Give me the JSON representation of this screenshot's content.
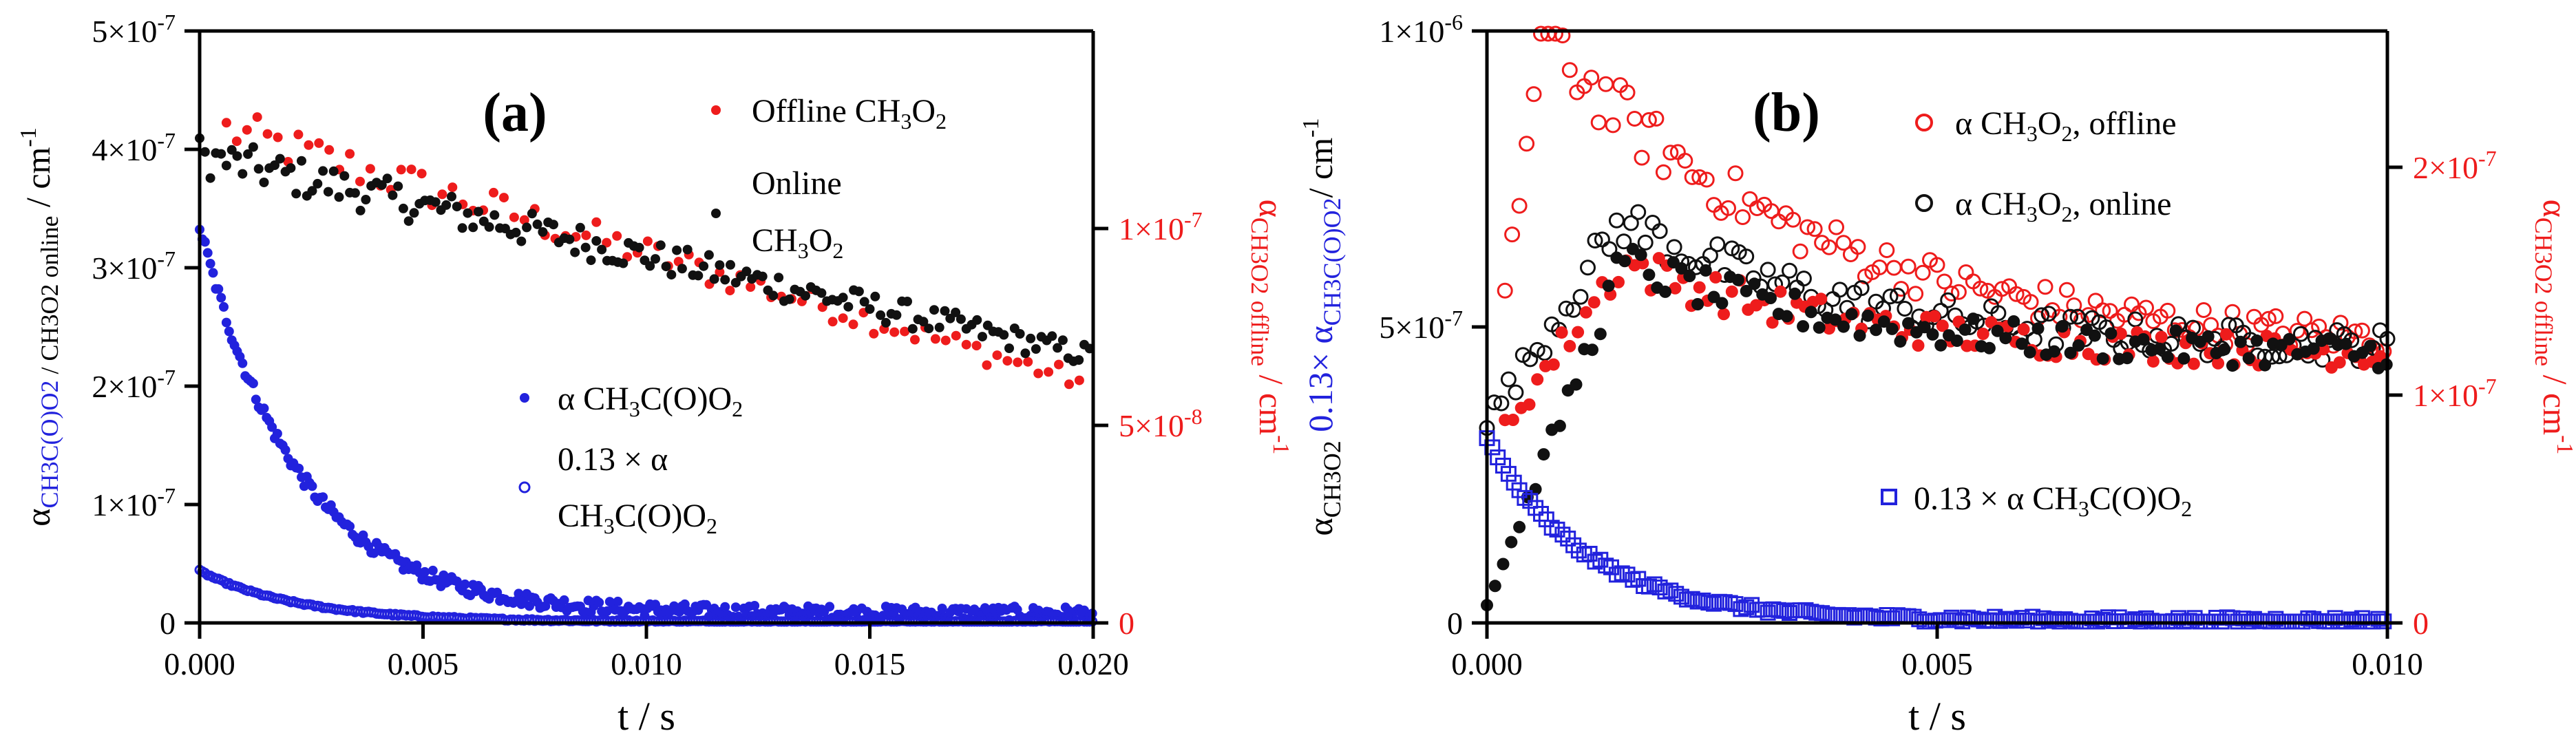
{
  "chart_data": [
    {
      "type": "scatter",
      "panel_label": "(a)",
      "xlabel": "t / s",
      "x_ticks": [
        "0.000",
        "0.005",
        "0.010",
        "0.015",
        "0.020"
      ],
      "xlim": [
        0,
        0.02
      ],
      "ylim_left": [
        0,
        5e-07
      ],
      "left_ticks": [
        "0",
        "1×10",
        "2×10",
        "3×10",
        "4×10",
        "5×10"
      ],
      "left_tick_exp": "-7",
      "ylim_right": [
        0,
        1.5e-07
      ],
      "right_ticks": [
        "0",
        "5×10",
        "1×10"
      ],
      "right_tick_exps": [
        "",
        "-8",
        "-7"
      ],
      "ylabel_left": {
        "alpha": "α",
        "sub_blue": "CH3C(O)O2",
        "sub_black": " / CH3O2 online",
        "unit": " / cm",
        "unit_exp": "-1"
      },
      "ylabel_right": {
        "alpha": "α",
        "sub": "CH3O2 offline",
        "unit": " / cm",
        "unit_exp": "-1"
      },
      "legend": {
        "offline": {
          "pre": "Offline CH",
          "s1": "3",
          "mid": "O",
          "s2": "2"
        },
        "online": {
          "l1": "Online",
          "pre": "CH",
          "s1": "3",
          "mid": "O",
          "s2": "2"
        },
        "acyl": {
          "pre": "α CH",
          "s1": "3",
          "mid": "C(O)O",
          "s2": "2"
        },
        "scaled": {
          "l1": "0.13 × α",
          "pre": "CH",
          "s1": "3",
          "mid": "C(O)O",
          "s2": "2"
        }
      },
      "series": [
        {
          "name": "Offline CH3O2",
          "axis": "right",
          "color": "#ee1c1c",
          "marker": "filled-circle",
          "model": "linear-decay",
          "t_start": 0.0006,
          "t_end": 0.0198,
          "step": 0.00023,
          "y0": 1.25e-07,
          "y1": 6.1e-08
        },
        {
          "name": "Online CH3O2",
          "axis": "left",
          "color": "#111111",
          "marker": "filled-circle",
          "model": "linear-decay",
          "t_start": 0.0,
          "t_end": 0.02,
          "step": 0.00012,
          "y0": 3.95e-07,
          "y1": 2.25e-07
        },
        {
          "name": "α CH3C(O)O2",
          "axis": "left",
          "color": "#2222dd",
          "marker": "filled-circle",
          "model": "exp-decay",
          "t_start": 0.0,
          "t_end": 0.02,
          "step": 6e-05,
          "y0": 3.35e-07,
          "tau": 0.0022,
          "floor": 8e-09
        },
        {
          "name": "0.13 × α CH3C(O)O2",
          "axis": "left",
          "color": "#2222dd",
          "marker": "open-circle",
          "model": "exp-decay",
          "t_start": 0.0,
          "t_end": 0.02,
          "step": 6e-05,
          "y0": 4.4e-08,
          "tau": 0.0022,
          "floor": 1e-09
        }
      ]
    },
    {
      "type": "scatter",
      "panel_label": "(b)",
      "xlabel": "t / s",
      "x_ticks": [
        "0.000",
        "0.005",
        "0.010"
      ],
      "xlim": [
        0,
        0.01
      ],
      "ylim_left": [
        0,
        1e-06
      ],
      "left_ticks": [
        "0",
        "5×10",
        "1×10"
      ],
      "left_tick_exps": [
        "",
        "-7",
        "-6"
      ],
      "ylim_right": [
        0,
        2.6e-07
      ],
      "right_ticks": [
        "0",
        "1×10",
        "2×10"
      ],
      "right_tick_exps": [
        "",
        "-7",
        "-7"
      ],
      "ylabel_left": {
        "alpha": "α",
        "sub_black": "CH3O2",
        "scale": " 0.13× α",
        "sub_blue": "CH3C(O)O2",
        "unit": "/ cm",
        "unit_exp": "-1"
      },
      "ylabel_right": {
        "alpha": "α",
        "sub": "CH3O2 offline",
        "unit": " / cm",
        "unit_exp": "-1"
      },
      "legend": {
        "offline": {
          "pre": "α CH",
          "s1": "3",
          "mid": "O",
          "s2": "2",
          "post": ", offline"
        },
        "online": {
          "pre": "α CH",
          "s1": "3",
          "mid": "O",
          "s2": "2",
          "post": ", online"
        },
        "scaled": {
          "pre": "0.13 × α CH",
          "s1": "3",
          "mid": "C(O)O",
          "s2": "2"
        }
      },
      "series": [
        {
          "name": "α CH3O2, offline (open)",
          "axis": "left",
          "color": "#ee1c1c",
          "marker": "open-circle",
          "model": "rise-decay",
          "t_start": 0.0002,
          "t_end": 0.01,
          "step": 8e-05,
          "peak": 1e-06,
          "t_peak": 0.0006,
          "y_end": 4.6e-07,
          "rise0": 3e-07
        },
        {
          "name": "α CH3O2, online (open)",
          "axis": "left",
          "color": "#111111",
          "marker": "open-circle",
          "model": "rise-decay",
          "t_start": 0.0,
          "t_end": 0.01,
          "step": 8e-05,
          "peak": 6.8e-07,
          "t_peak": 0.0015,
          "y_end": 4.6e-07,
          "rise0": 3.4e-07
        },
        {
          "name": "offline (filled)",
          "axis": "left",
          "color": "#ee1c1c",
          "marker": "filled-circle",
          "model": "rise-decay",
          "t_start": 0.0002,
          "t_end": 0.01,
          "step": 9e-05,
          "peak": 6.1e-07,
          "t_peak": 0.0015,
          "y_end": 4.5e-07,
          "rise0": 2.9e-07
        },
        {
          "name": "online (filled)",
          "axis": "left",
          "color": "#111111",
          "marker": "filled-circle",
          "model": "rise-decay",
          "t_start": 0.0,
          "t_end": 0.01,
          "step": 9e-05,
          "peak": 6.1e-07,
          "t_peak": 0.0015,
          "y_end": 4.5e-07,
          "rise0": 3e-08
        },
        {
          "name": "0.13 × α CH3C(O)O2",
          "axis": "left",
          "color": "#2222dd",
          "marker": "open-square",
          "model": "exp-decay",
          "t_start": 0.0,
          "t_end": 0.01,
          "step": 6e-05,
          "y0": 3.1e-07,
          "tau": 0.0011,
          "floor": 4e-09
        }
      ]
    }
  ]
}
